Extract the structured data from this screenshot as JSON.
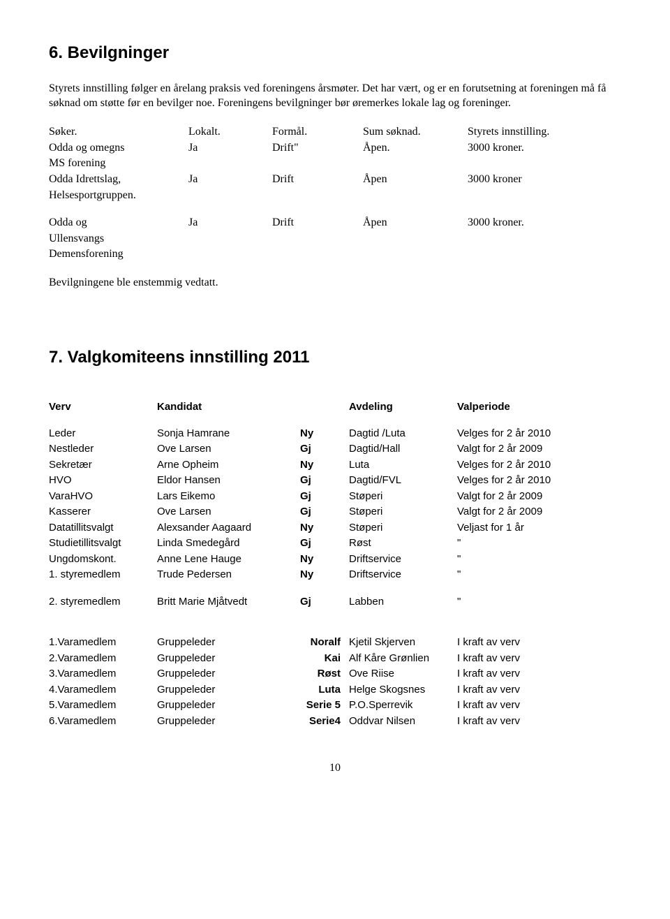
{
  "section6": {
    "title": "6. Bevilgninger",
    "intro": "Styrets innstilling følger en årelang praksis ved foreningens årsmøter. Det har vært, og er en forutsetning at foreningen må få søknad om støtte før en bevilger noe. Foreningens bevilgninger bør øremerkes lokale lag og foreninger.",
    "header": {
      "c1": "Søker.",
      "c2": "Lokalt.",
      "c3": "Formål.",
      "c4": "Sum søknad.",
      "c5": "Styrets innstilling."
    },
    "rows": [
      {
        "c1a": "Odda og omegns",
        "c1b": "MS forening",
        "c2": "Ja",
        "c3": "Drift\"",
        "c4": "Åpen.",
        "c5": "3000 kroner."
      },
      {
        "c1a": "Odda Idrettslag,",
        "c1b": "Helsesportgruppen.",
        "c2": "Ja",
        "c3": "Drift",
        "c4": "Åpen",
        "c5": "3000 kroner"
      },
      {
        "c1a": "Odda og",
        "c1b": "Ullensvangs",
        "c1c": "Demensforening",
        "c2": "Ja",
        "c3": "Drift",
        "c4": "Åpen",
        "c5": "3000 kroner."
      }
    ],
    "closing": "Bevilgningene ble enstemmig vedtatt."
  },
  "section7": {
    "title": "7. Valgkomiteens innstilling  2011",
    "header": {
      "c1": "Verv",
      "c2": "Kandidat",
      "c3": "",
      "c4": "Avdeling",
      "c5": "Valperiode"
    },
    "groupA": [
      {
        "c1": "Leder",
        "c2": "Sonja Hamrane",
        "c3": "Ny",
        "c4": "Dagtid /Luta",
        "c5": "Velges for 2 år 2010"
      },
      {
        "c1": "Nestleder",
        "c2": "Ove Larsen",
        "c3": "Gj",
        "c4": "Dagtid/Hall",
        "c5": "Valgt for 2 år   2009"
      },
      {
        "c1": "Sekretær",
        "c2": "Arne Opheim",
        "c3": "Ny",
        "c4": "Luta",
        "c5": "Velges for 2 år 2010"
      },
      {
        "c1": "HVO",
        "c2": "Eldor Hansen",
        "c3": "Gj",
        "c4": "Dagtid/FVL",
        "c5": "Velges for 2 år 2010"
      },
      {
        "c1": "VaraHVO",
        "c2": "Lars Eikemo",
        "c3": "Gj",
        "c4": "Støperi",
        "c5": "Valgt for 2 år 2009"
      },
      {
        "c1": "Kasserer",
        "c2": "Ove Larsen",
        "c3": "Gj",
        "c4": "Støperi",
        "c5": "Valgt for 2 år 2009"
      },
      {
        "c1": "Datatillitsvalgt",
        "c2": "Alexsander Aagaard",
        "c3": "Ny",
        "c4": "Støperi",
        "c5": "Veljast for 1 år"
      },
      {
        "c1": "Studietillitsvalgt",
        "c2": "Linda Smedegård",
        "c3": "Gj",
        "c4": "Røst",
        "c5": "\""
      },
      {
        "c1": "Ungdomskont.",
        "c2": "Anne Lene Hauge",
        "c3": "Ny",
        "c4": "Driftservice",
        "c5": "\""
      },
      {
        "c1": "1. styremedlem",
        "c2": "Trude Pedersen",
        "c3": "Ny",
        "c4": "Driftservice",
        "c5": "\""
      }
    ],
    "groupB": [
      {
        "c1": "2. styremedlem",
        "c2": "Britt Marie Mjåtvedt",
        "c3": "Gj",
        "c4": "Labben",
        "c5": "\""
      }
    ],
    "groupC": [
      {
        "c1": "1.Varamedlem",
        "c2": "Gruppeleder",
        "c3": "Noralf",
        "c4": "Kjetil Skjerven",
        "c5": "I kraft av verv"
      },
      {
        "c1": "2.Varamedlem",
        "c2": "Gruppeleder",
        "c3": "Kai",
        "c4": "Alf Kåre Grønlien",
        "c5": "I kraft av verv"
      },
      {
        "c1": "3.Varamedlem",
        "c2": "Gruppeleder",
        "c3": "Røst",
        "c4": "Ove Riise",
        "c5": "I kraft av verv"
      },
      {
        "c1": "4.Varamedlem",
        "c2": "Gruppeleder",
        "c3": "Luta",
        "c4": "Helge Skogsnes",
        "c5": "I kraft av verv"
      },
      {
        "c1": "5.Varamedlem",
        "c2": "Gruppeleder",
        "c3": "Serie 5",
        "c4": "P.O.Sperrevik",
        "c5": "I kraft av verv"
      },
      {
        "c1": "6.Varamedlem",
        "c2": "Gruppeleder",
        "c3": "Serie4",
        "c4": "Oddvar Nilsen",
        "c5": "I kraft av verv"
      }
    ]
  },
  "pageNumber": "10",
  "layout": {
    "grants_colwidths": [
      "200px",
      "120px",
      "130px",
      "150px",
      "auto"
    ],
    "valg_colwidths": [
      "155px",
      "200px",
      "70px",
      "155px",
      "auto"
    ]
  },
  "colors": {
    "text": "#000000",
    "bg": "#ffffff"
  }
}
